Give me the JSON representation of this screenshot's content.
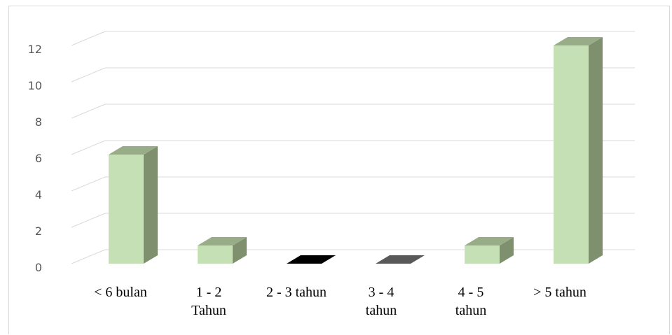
{
  "chart_data": {
    "type": "bar",
    "style": "3d-column",
    "title": "",
    "xlabel": "",
    "ylabel": "",
    "categories": [
      [
        "< 6 bulan"
      ],
      [
        "1 - 2",
        "Tahun"
      ],
      [
        "2 - 3 tahun"
      ],
      [
        "3  - 4",
        "tahun"
      ],
      [
        "4  - 5",
        "tahun"
      ],
      [
        "> 5 tahun"
      ]
    ],
    "values": [
      6,
      1,
      0,
      0,
      1,
      12
    ],
    "ylim": [
      0,
      12
    ],
    "yticks": [
      "0",
      "2",
      "4",
      "6",
      "8",
      "10",
      "12"
    ],
    "grid": true,
    "legend": "none",
    "colors": {
      "bar_front": "#c5e0b4",
      "bar_side": "#7f906f",
      "bar_top": "#98ad87",
      "zero_bar_dark": "#000000",
      "zero_bar_gray": "#595959",
      "gridline": "#d9d9d9",
      "tick_text": "#595959"
    }
  }
}
